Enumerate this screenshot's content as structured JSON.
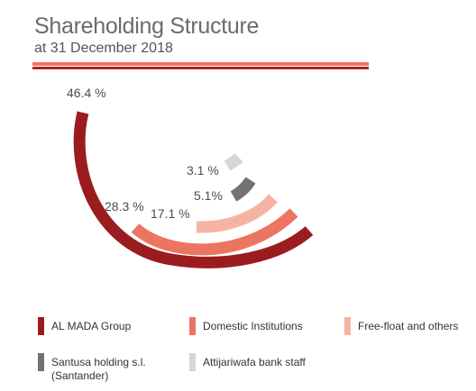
{
  "header": {
    "title": "Shareholding Structure",
    "subtitle": "at 31 December 2018"
  },
  "chart_data": {
    "type": "radial-bar",
    "title": "Shareholding Structure",
    "subtitle": "at 31 December 2018",
    "unit": "%",
    "series": [
      {
        "name": "AL MADA Group",
        "value": 46.4,
        "label": "46.4 %",
        "color": "#9b1c1f"
      },
      {
        "name": "Domestic Institutions",
        "value": 28.3,
        "label": "28.3 %",
        "color": "#ec7561"
      },
      {
        "name": "Free-float and others",
        "value": 17.1,
        "label": "17.1 %",
        "color": "#f6b3a3"
      },
      {
        "name": "Santusa holding s.l.\n(Santander)",
        "value": 5.1,
        "label": "5.1%",
        "color": "#757171"
      },
      {
        "name": "Attijariwafa bank staff",
        "value": 3.1,
        "label": "3.1 %",
        "color": "#d6d6d6"
      }
    ]
  }
}
